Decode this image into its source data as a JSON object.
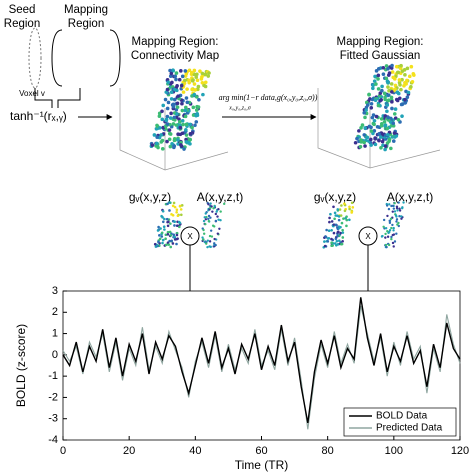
{
  "diagram": {
    "seed_label": [
      "Seed",
      "Region"
    ],
    "mapping_label": [
      "Mapping",
      "Region"
    ],
    "voxel_label": "Voxel v",
    "transform": "tanh⁻¹(rₓ,ᵧ)",
    "map1_title": [
      "Mapping Region:",
      "Connectivity Map"
    ],
    "map2_title": [
      "Mapping Region:",
      "Fitted Gaussian"
    ],
    "objective": "arg min(1−r data,g(x₀,y₀,z₀,σ))",
    "objective_sub": "x₀,y₀,z₀,σ",
    "model_left": [
      "gᵥ(x,y,z)",
      "A(x,y,z,t)",
      "X"
    ],
    "model_right": [
      "gᵥ(x,y,z)",
      "A(x,y,z,t)",
      "X"
    ]
  },
  "chart_data": {
    "type": "line",
    "xlabel": "Time (TR)",
    "ylabel": "BOLD (z-score)",
    "x": [
      0,
      2,
      4,
      6,
      8,
      10,
      12,
      14,
      16,
      18,
      20,
      22,
      24,
      26,
      28,
      30,
      32,
      34,
      36,
      38,
      40,
      42,
      44,
      46,
      48,
      50,
      52,
      54,
      56,
      58,
      60,
      62,
      64,
      66,
      68,
      70,
      72,
      74,
      76,
      78,
      80,
      82,
      84,
      86,
      88,
      90,
      92,
      94,
      96,
      98,
      100,
      102,
      104,
      106,
      108,
      110,
      112,
      114,
      116,
      118,
      120
    ],
    "series": [
      {
        "name": "BOLD Data",
        "color": "#000000",
        "values": [
          0,
          -0.5,
          0.6,
          -0.8,
          0.4,
          -0.3,
          1.2,
          -0.6,
          0.8,
          -1.0,
          0.5,
          -0.3,
          1.0,
          -0.9,
          0.6,
          -0.2,
          0.9,
          0.4,
          -0.8,
          -1.8,
          -0.5,
          0.8,
          -0.4,
          1.1,
          -0.6,
          0.3,
          -0.9,
          0.5,
          -0.2,
          1.0,
          -0.7,
          0.4,
          -0.5,
          1.4,
          -0.3,
          0.6,
          -1.5,
          -3.2,
          -0.8,
          0.7,
          -0.4,
          0.9,
          -0.6,
          0.3,
          -0.2,
          2.7,
          0.8,
          -0.5,
          1.0,
          -0.8,
          0.4,
          -0.3,
          0.9,
          -0.4,
          0.2,
          -1.5,
          0.5,
          -0.6,
          1.5,
          0.3,
          -0.2
        ]
      },
      {
        "name": "Predicted Data",
        "color": "#8fa6a0",
        "values": [
          0.2,
          -0.3,
          0.4,
          -0.9,
          0.6,
          -0.1,
          1.0,
          -0.8,
          0.6,
          -1.2,
          0.3,
          -0.5,
          1.3,
          -0.7,
          0.4,
          -0.4,
          1.1,
          0.2,
          -0.6,
          -2.0,
          -0.3,
          0.6,
          -0.6,
          0.9,
          -0.8,
          0.5,
          -0.7,
          0.3,
          -0.4,
          1.2,
          -0.5,
          0.2,
          -0.7,
          1.2,
          -0.5,
          0.8,
          -1.2,
          -3.5,
          -1.1,
          0.5,
          -0.6,
          1.1,
          -0.4,
          0.5,
          -0.4,
          2.3,
          1.0,
          -0.3,
          0.8,
          -1.0,
          0.6,
          -0.5,
          1.1,
          -0.2,
          0.4,
          -1.8,
          0.3,
          -0.8,
          1.9,
          0.5,
          -0.4
        ]
      }
    ],
    "xlim": [
      0,
      120
    ],
    "xticks": [
      0,
      20,
      40,
      60,
      80,
      100,
      120
    ],
    "ylim": [
      -4,
      3
    ],
    "yticks": [
      -4,
      -3,
      -2,
      -1,
      0,
      1,
      2,
      3
    ],
    "legend": "lower right"
  }
}
